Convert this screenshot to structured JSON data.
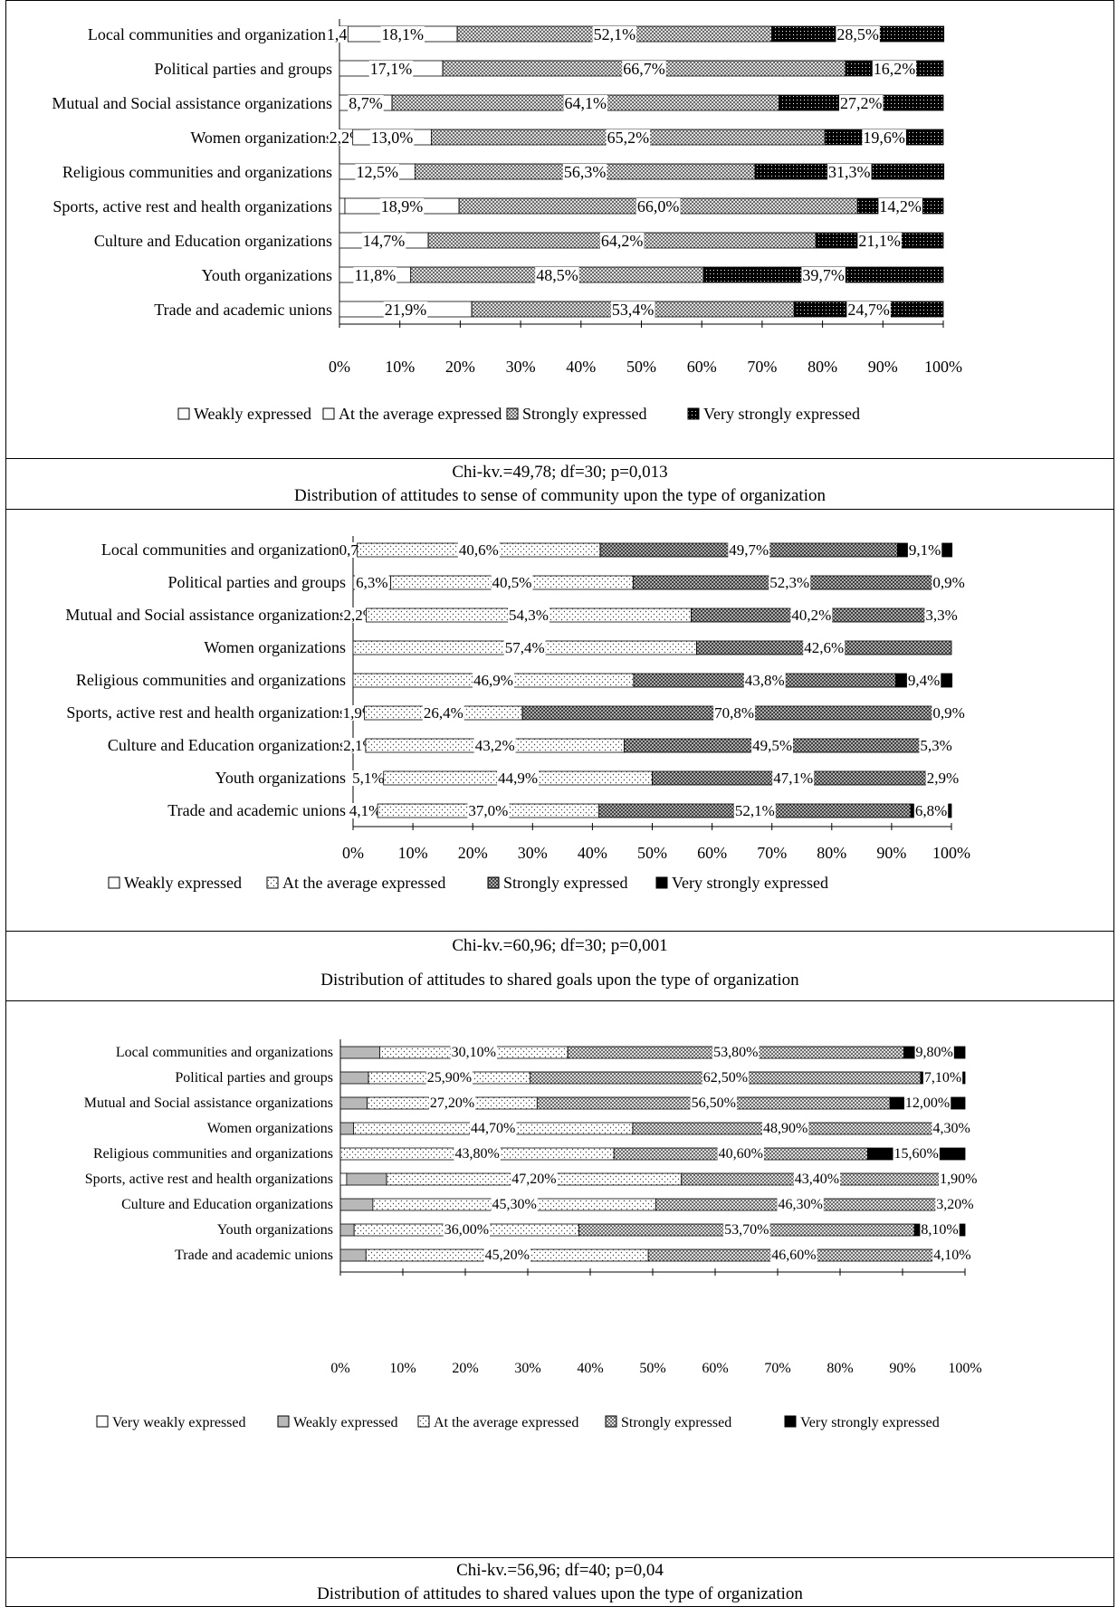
{
  "panels": [
    {
      "stat": "Chi-kv.=49,78; df=30; p=0,013",
      "title": "Distribution of attitudes to sense of community upon the type of organization",
      "chart_data": {
        "type": "bar",
        "orientation": "horizontal",
        "stacked": true,
        "categories": [
          "Local communities and organizations",
          "Political parties and groups",
          "Mutual and Social assistance organizations",
          "Women organizations",
          "Religious communities and organizations",
          "Sports, active rest and health organizations",
          "Culture and Education organizations",
          "Youth organizations",
          "Trade and academic unions"
        ],
        "series": [
          {
            "name": "Weakly expressed",
            "values": [
              1.4,
              0,
              0,
              2.2,
              0,
              0.9,
              0,
              0,
              0
            ]
          },
          {
            "name": "At the average expressed",
            "values": [
              18.1,
              17.1,
              8.7,
              13.0,
              12.5,
              18.9,
              14.7,
              11.8,
              21.9
            ]
          },
          {
            "name": "Strongly expressed",
            "values": [
              52.1,
              66.7,
              64.1,
              65.2,
              56.3,
              66.0,
              64.2,
              48.5,
              53.4
            ]
          },
          {
            "name": "Very strongly expressed",
            "values": [
              28.5,
              16.2,
              27.2,
              19.6,
              31.3,
              14.2,
              21.1,
              39.7,
              24.7
            ]
          }
        ],
        "labels": [
          [
            "1,4%",
            "18,1%",
            "52,1%",
            "28,5%"
          ],
          [
            "",
            "17,1%",
            "66,7%",
            "16,2%"
          ],
          [
            "",
            "8,7%",
            "64,1%",
            "27,2%"
          ],
          [
            "2,2%",
            "13,0%",
            "65,2%",
            "19,6%"
          ],
          [
            "",
            "12,5%",
            "56,3%",
            "31,3%"
          ],
          [
            "",
            "18,9%",
            "66,0%",
            "14,2%"
          ],
          [
            "",
            "14,7%",
            "64,2%",
            "21,1%"
          ],
          [
            "",
            "11,8%",
            "48,5%",
            "39,7%"
          ],
          [
            "",
            "21,9%",
            "53,4%",
            "24,7%"
          ]
        ],
        "xticks": [
          "0%",
          "10%",
          "20%",
          "30%",
          "40%",
          "50%",
          "60%",
          "70%",
          "80%",
          "90%",
          "100%"
        ],
        "xlim": [
          0,
          100
        ],
        "legend_position": "bottom",
        "patterns": [
          "white",
          "white",
          "crosshatch",
          "dots-dark"
        ]
      }
    },
    {
      "stat": "Chi-kv.=60,96; df=30; p=0,001",
      "title": "Distribution of attitudes to shared goals upon the type of organization",
      "chart_data": {
        "type": "bar",
        "orientation": "horizontal",
        "stacked": true,
        "categories": [
          "Local communities and organizations",
          "Political parties and groups",
          "Mutual and Social assistance organizations",
          "Women organizations",
          "Religious communities and organizations",
          "Sports, active rest and health organizations",
          "Culture and Education organizations",
          "Youth organizations",
          "Trade and academic unions"
        ],
        "series": [
          {
            "name": "Weakly expressed",
            "values": [
              0.7,
              6.3,
              2.2,
              0,
              0,
              1.9,
              2.1,
              5.1,
              4.1
            ]
          },
          {
            "name": "At the average expressed",
            "values": [
              40.6,
              40.5,
              54.3,
              57.4,
              46.9,
              26.4,
              43.2,
              44.9,
              37.0
            ]
          },
          {
            "name": "Strongly expressed",
            "values": [
              49.7,
              52.3,
              40.2,
              42.6,
              43.8,
              70.8,
              49.5,
              47.1,
              52.1
            ]
          },
          {
            "name": "Very strongly expressed",
            "values": [
              9.1,
              0.9,
              3.3,
              0,
              9.4,
              0.9,
              5.3,
              2.9,
              6.8
            ]
          }
        ],
        "labels": [
          [
            "0,7%",
            "40,6%",
            "49,7%",
            "9,1%"
          ],
          [
            "6,3%",
            "40,5%",
            "52,3%",
            "0,9%"
          ],
          [
            "2,2%",
            "54,3%",
            "40,2%",
            "3,3%"
          ],
          [
            "",
            "57,4%",
            "42,6%",
            ""
          ],
          [
            "",
            "46,9%",
            "43,8%",
            "9,4%"
          ],
          [
            "1,9%",
            "26,4%",
            "70,8%",
            "0,9%"
          ],
          [
            "2,1%",
            "43,2%",
            "49,5%",
            "5,3%"
          ],
          [
            "5,1%",
            "44,9%",
            "47,1%",
            "2,9%"
          ],
          [
            "4,1%",
            "37,0%",
            "52,1%",
            "6,8%"
          ]
        ],
        "xticks": [
          "0%",
          "10%",
          "20%",
          "30%",
          "40%",
          "50%",
          "60%",
          "70%",
          "80%",
          "90%",
          "100%"
        ],
        "xlim": [
          0,
          100
        ],
        "legend_position": "bottom",
        "patterns": [
          "white",
          "dots-light",
          "crosshatch-dark",
          "black"
        ]
      }
    },
    {
      "stat": "Chi-kv.=56,96; df=40; p=0,04",
      "title": "Distribution of attitudes to shared values upon the type of organization",
      "chart_data": {
        "type": "bar",
        "orientation": "horizontal",
        "stacked": true,
        "categories": [
          "Local communities and organizations",
          "Political parties and groups",
          "Mutual and Social assistance organizations",
          "Women organizations",
          "Religious communities and organizations",
          "Sports, active rest and health organizations",
          "Culture and Education organizations",
          "Youth organizations",
          "Trade and academic unions"
        ],
        "series": [
          {
            "name": "Very weakly expressed",
            "values": [
              0,
              0,
              0,
              0,
              0,
              1.0,
              0,
              0,
              0
            ]
          },
          {
            "name": "Weakly expressed",
            "values": [
              6.3,
              4.5,
              4.3,
              2.1,
              0,
              6.4,
              5.2,
              2.2,
              4.1
            ]
          },
          {
            "name": "At the average expressed",
            "values": [
              30.1,
              25.9,
              27.2,
              44.7,
              43.8,
              47.2,
              45.3,
              36.0,
              45.2
            ]
          },
          {
            "name": "Strongly expressed",
            "values": [
              53.8,
              62.5,
              56.5,
              48.9,
              40.6,
              43.4,
              46.3,
              53.7,
              46.6
            ]
          },
          {
            "name": "Very strongly expressed",
            "values": [
              9.8,
              7.1,
              12.0,
              4.3,
              15.6,
              1.9,
              3.2,
              8.1,
              4.1
            ]
          }
        ],
        "labels": [
          [
            "",
            "",
            "30,10%",
            "53,80%",
            "9,80%"
          ],
          [
            "",
            "",
            "25,90%",
            "62,50%",
            "7,10%"
          ],
          [
            "",
            "",
            "27,20%",
            "56,50%",
            "12,00%"
          ],
          [
            "",
            "",
            "44,70%",
            "48,90%",
            "4,30%"
          ],
          [
            "",
            "",
            "43,80%",
            "40,60%",
            "15,60%"
          ],
          [
            "",
            "",
            "47,20%",
            "43,40%",
            "1,90%"
          ],
          [
            "",
            "",
            "45,30%",
            "46,30%",
            "3,20%"
          ],
          [
            "",
            "",
            "36,00%",
            "53,70%",
            "8,10%"
          ],
          [
            "",
            "",
            "45,20%",
            "46,60%",
            "4,10%"
          ]
        ],
        "xticks": [
          "0%",
          "10%",
          "20%",
          "30%",
          "40%",
          "50%",
          "60%",
          "70%",
          "80%",
          "90%",
          "100%"
        ],
        "xlim": [
          0,
          100
        ],
        "legend_position": "bottom",
        "patterns": [
          "white",
          "gray",
          "dots-light",
          "crosshatch",
          "black"
        ]
      }
    }
  ]
}
